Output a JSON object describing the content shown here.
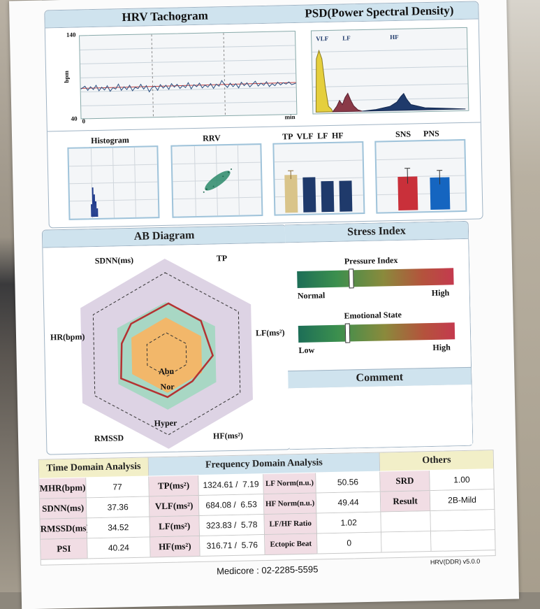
{
  "tachogram": {
    "title": "HRV Tachogram",
    "y_max": "140",
    "y_min": "40",
    "y_unit": "bpm",
    "x_start": "0",
    "x_unit": "min"
  },
  "psd": {
    "title": "PSD(Power Spectral Density)",
    "bands": [
      "VLF",
      "LF",
      "HF"
    ]
  },
  "histogram": {
    "title": "Histogram"
  },
  "rrv": {
    "title": "RRV"
  },
  "power_bars": {
    "title": "TP  VLF  LF  HF"
  },
  "ans_bars": {
    "labels": [
      "SNS",
      "PNS"
    ]
  },
  "ab_diagram": {
    "title": "AB Diagram",
    "axes": {
      "sdnn": "SDNN(ms)",
      "tp": "TP",
      "lf": "LF(ms²)",
      "hf": "HF(ms²)",
      "rmssd": "RMSSD",
      "hr": "HR(bpm)"
    },
    "zones": {
      "abn": "Abn",
      "nor": "Nor",
      "hyper": "Hyper"
    }
  },
  "stress": {
    "title": "Stress Index",
    "pressure": {
      "label": "Pressure Index",
      "low": "Normal",
      "high": "High",
      "level": 0.33
    },
    "emotional": {
      "label": "Emotional State",
      "low": "Low",
      "high": "High",
      "level": 0.3
    }
  },
  "comment": {
    "title": "Comment"
  },
  "time_domain": {
    "title": "Time Domain Analysis",
    "rows": [
      {
        "key": "MHR(bpm)",
        "value": "77"
      },
      {
        "key": "SDNN(ms)",
        "value": "37.36"
      },
      {
        "key": "RMSSD(ms)",
        "value": "34.52"
      },
      {
        "key": "PSI",
        "value": "40.24"
      }
    ]
  },
  "freq_domain": {
    "title": "Frequency Domain Analysis",
    "rows": [
      {
        "key": "TP(ms²)",
        "value": "1324.61 /  7.19",
        "key2": "LF Norm(n.u.)",
        "value2": "50.56"
      },
      {
        "key": "VLF(ms²)",
        "value": "684.08 /  6.53",
        "key2": "HF Norm(n.u.)",
        "value2": "49.44"
      },
      {
        "key": "LF(ms²)",
        "value": "323.83 /  5.78",
        "key2": "LF/HF Ratio",
        "value2": "1.02"
      },
      {
        "key": "HF(ms²)",
        "value": "316.71 /  5.76",
        "key2": "Ectopic Beat",
        "value2": "0"
      }
    ]
  },
  "others": {
    "title": "Others",
    "rows": [
      {
        "key": "SRD",
        "value": "1.00"
      },
      {
        "key": "Result",
        "value": "2B-Mild"
      }
    ]
  },
  "footer": {
    "contact": "Medicore : 02-2285-5595",
    "version": "HRV(DDR) v5.0.0"
  },
  "colors": {
    "header_blue": "#cfe3ee",
    "key_pink": "#f1dde4",
    "title_yellow": "#f2efc8",
    "bar_gold": "#d9c48a",
    "bar_navy": "#1f3a6b",
    "sns_red": "#c9303a",
    "pns_blue": "#1565c0"
  }
}
